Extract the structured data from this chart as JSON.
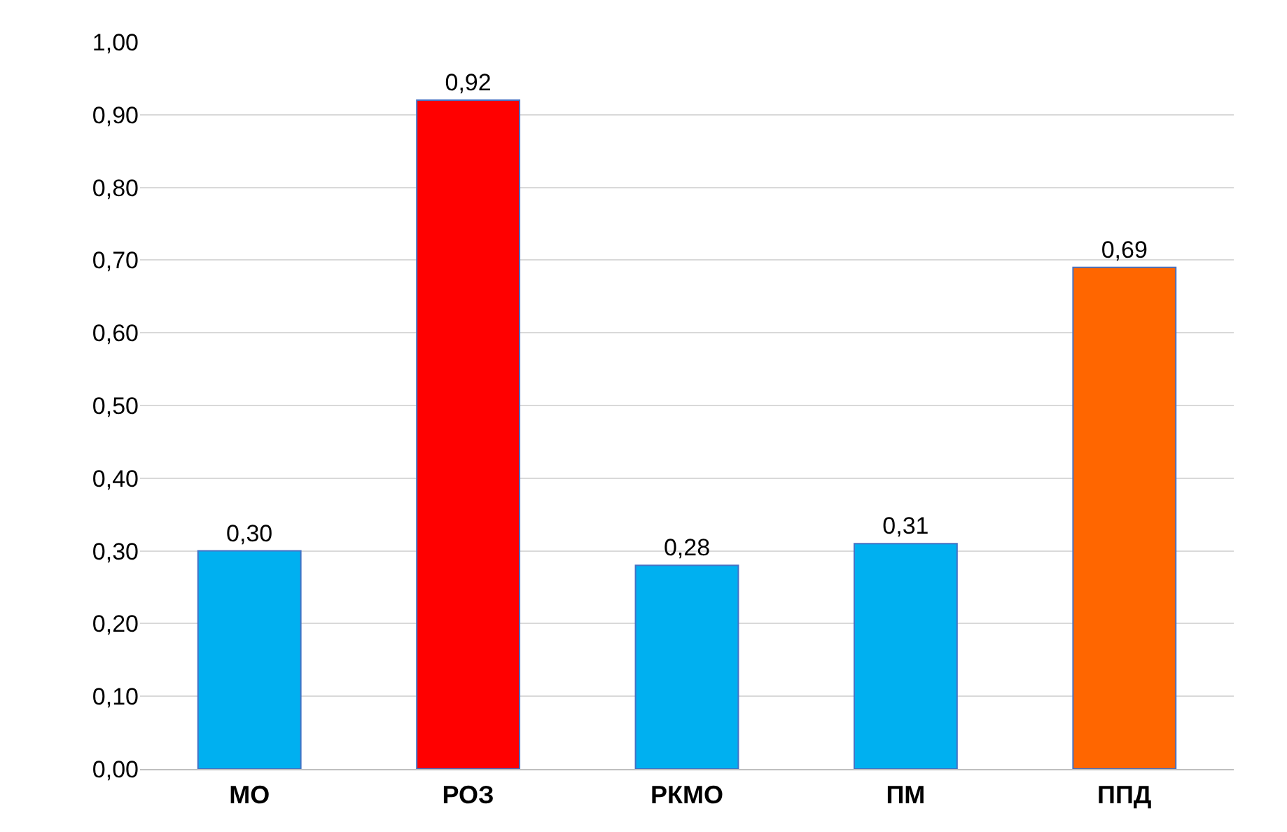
{
  "chart_data": {
    "type": "bar",
    "categories": [
      "МО",
      "РОЗ",
      "РКМО",
      "ПМ",
      "ППД"
    ],
    "values": [
      0.3,
      0.92,
      0.28,
      0.31,
      0.69
    ],
    "colors": [
      "#00b0f0",
      "#ff0000",
      "#00b0f0",
      "#00b0f0",
      "#ff6600"
    ],
    "value_labels": [
      "0,30",
      "0,92",
      "0,28",
      "0,31",
      "0,69"
    ],
    "ylim": [
      0,
      1
    ],
    "yticks": [
      {
        "value": 0,
        "label": "0,00"
      },
      {
        "value": 0.1,
        "label": "0,10"
      },
      {
        "value": 0.2,
        "label": "0,20"
      },
      {
        "value": 0.3,
        "label": "0,30"
      },
      {
        "value": 0.4,
        "label": "0,40"
      },
      {
        "value": 0.5,
        "label": "0,50"
      },
      {
        "value": 0.6,
        "label": "0,60"
      },
      {
        "value": 0.7,
        "label": "0,70"
      },
      {
        "value": 0.8,
        "label": "0,80"
      },
      {
        "value": 0.9,
        "label": "0,90"
      },
      {
        "value": 1,
        "label": "1,00"
      }
    ],
    "grid": "y"
  }
}
